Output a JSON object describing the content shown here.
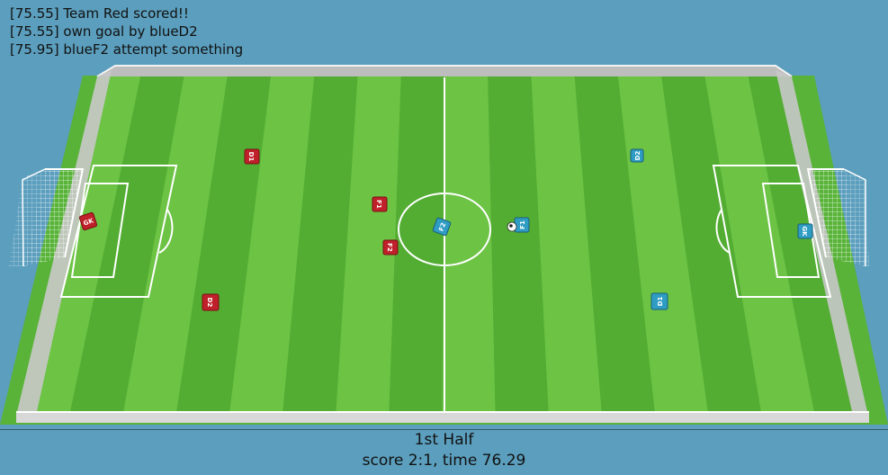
{
  "log": [
    "[75.55] Team Red scored!!",
    "[75.55] own goal by blueD2",
    "[75.95] blueF2 attempt something"
  ],
  "status": {
    "half": "1st Half",
    "score_time": "score 2:1, time 76.29"
  },
  "colors": {
    "red_team": "#c0202a",
    "blue_team": "#2f9cc4",
    "grass_light": "#6cc344",
    "grass_dark": "#52ad32",
    "sky": "#5b9ebd"
  },
  "players": {
    "red": [
      {
        "id": "red-gk",
        "label": "GK"
      },
      {
        "id": "red-d1",
        "label": "D1"
      },
      {
        "id": "red-d2",
        "label": "D2"
      },
      {
        "id": "red-f1",
        "label": "F1"
      },
      {
        "id": "red-f2",
        "label": "F2"
      }
    ],
    "blue": [
      {
        "id": "blue-gk",
        "label": "GK"
      },
      {
        "id": "blue-d1",
        "label": "D1"
      },
      {
        "id": "blue-d2",
        "label": "D2"
      },
      {
        "id": "blue-f1",
        "label": "F1"
      },
      {
        "id": "blue-f2",
        "label": "F2"
      }
    ]
  }
}
